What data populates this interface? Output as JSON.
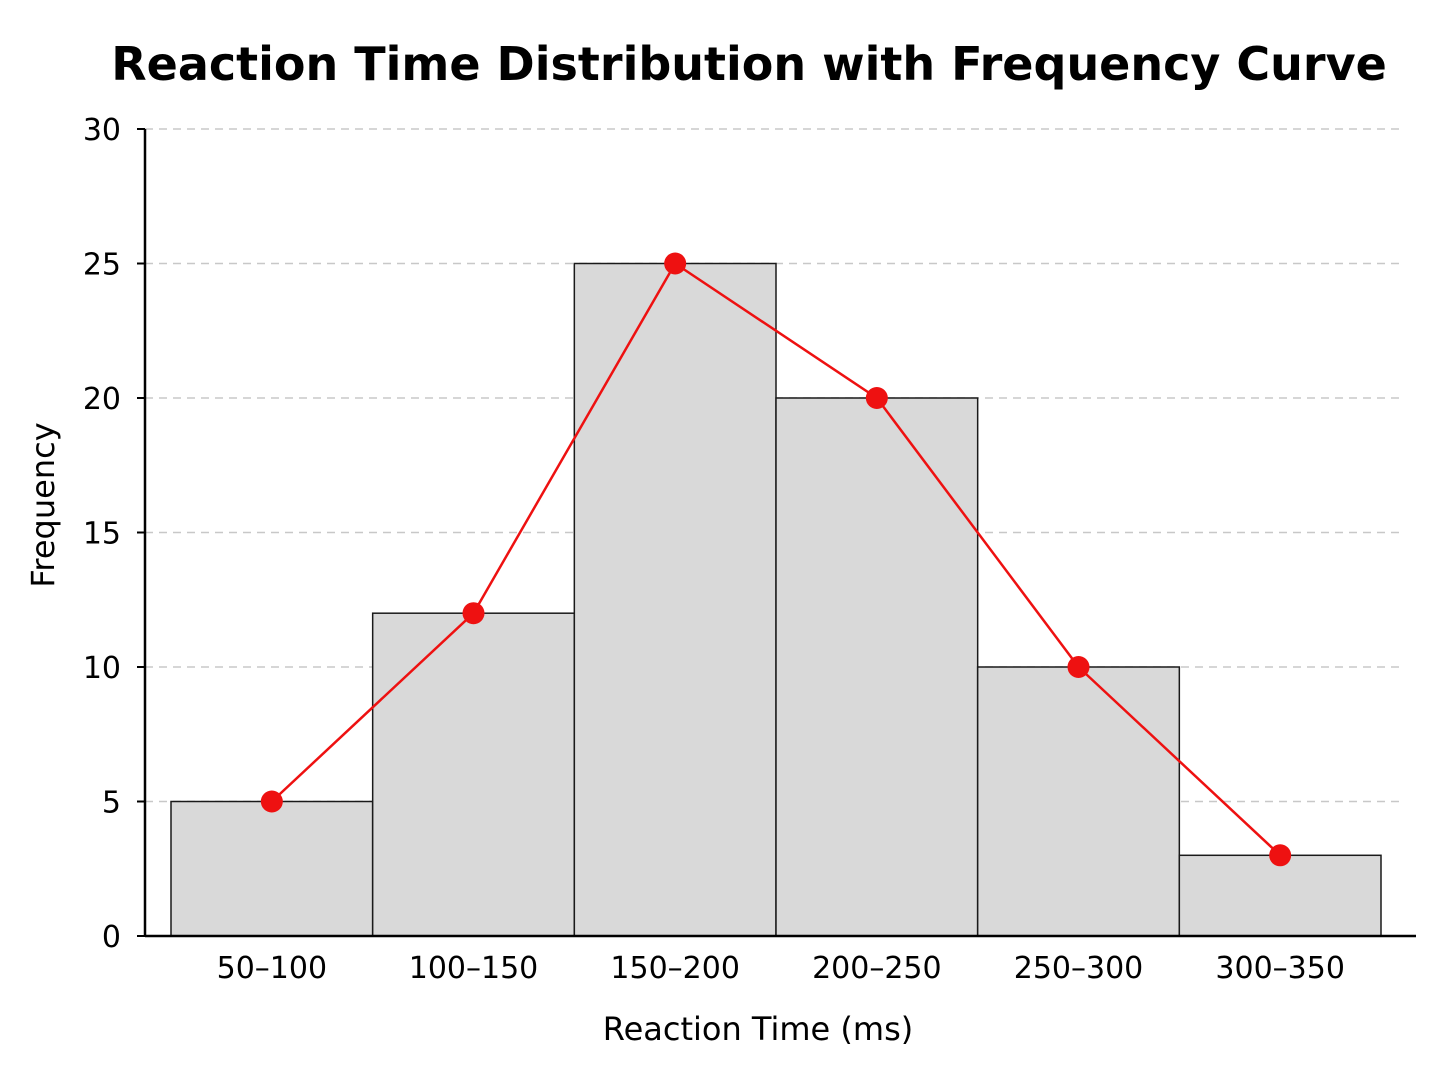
{
  "chart_data": {
    "type": "bar",
    "title": "Reaction Time Distribution with Frequency Curve",
    "xlabel": "Reaction Time (ms)",
    "ylabel": "Frequency",
    "categories": [
      "50–100",
      "100–150",
      "150–200",
      "200–250",
      "250–300",
      "300–350"
    ],
    "series": [
      {
        "type": "bar",
        "values": [
          5,
          12,
          25,
          20,
          10,
          3
        ],
        "color": "#d9d9d9",
        "edge_color": "#1a1a1a"
      },
      {
        "type": "line",
        "values": [
          5,
          12,
          25,
          20,
          10,
          3
        ],
        "color": "#ee1111",
        "marker": "circle"
      }
    ],
    "ylim": [
      0,
      30
    ],
    "yticks": [
      0,
      5,
      10,
      15,
      20,
      25,
      30
    ],
    "grid": {
      "y": true,
      "x": false,
      "style": "dashed"
    }
  }
}
